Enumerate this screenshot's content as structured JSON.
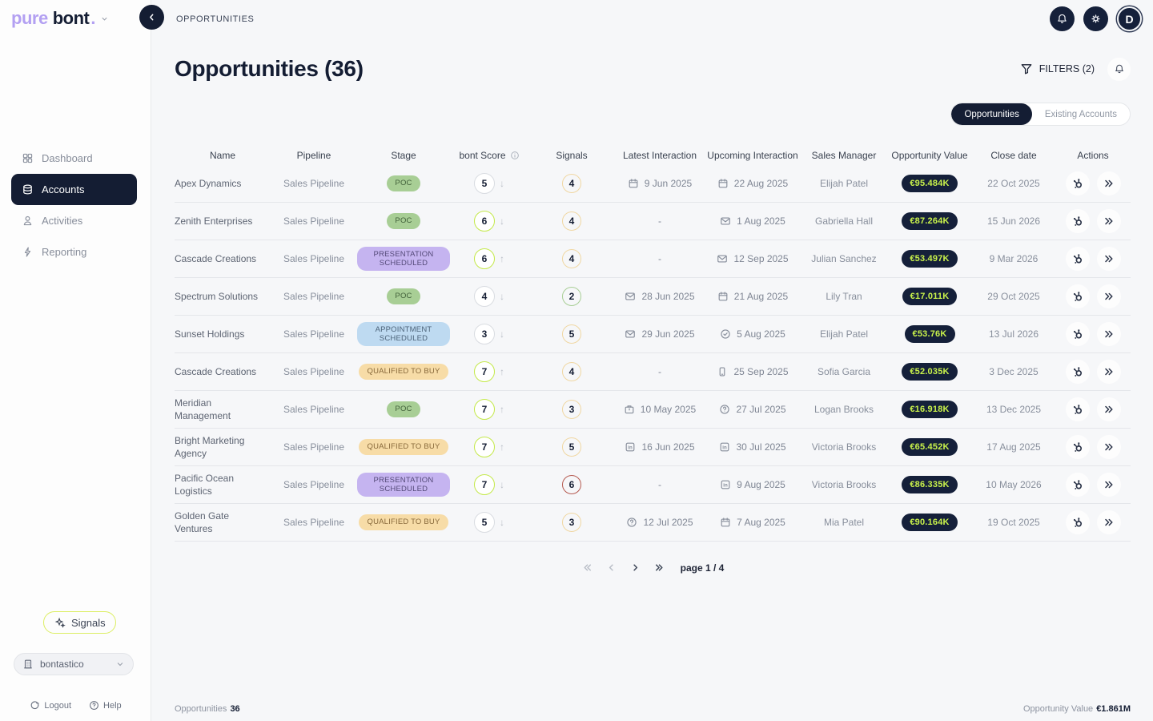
{
  "brand": {
    "logo_part1": "pure",
    "logo_part2": "bont",
    "logo_dot": ".",
    "avatar_initial": "D"
  },
  "topbar": {
    "breadcrumb": "OPPORTUNITIES"
  },
  "sidebar": {
    "items": [
      {
        "label": "Dashboard",
        "icon": "dashboard",
        "active": false
      },
      {
        "label": "Accounts",
        "icon": "database",
        "active": true
      },
      {
        "label": "Activities",
        "icon": "person",
        "active": false
      },
      {
        "label": "Reporting",
        "icon": "lightning",
        "active": false
      }
    ],
    "signals_label": "Signals",
    "workspace": "bontastico",
    "logout_label": "Logout",
    "help_label": "Help"
  },
  "header": {
    "title": "Opportunities (36)",
    "filters_label": "FILTERS (2)"
  },
  "tabs": [
    {
      "label": "Opportunities",
      "active": true
    },
    {
      "label": "Existing Accounts",
      "active": false
    }
  ],
  "table": {
    "columns": [
      {
        "label": "Name"
      },
      {
        "label": "Pipeline"
      },
      {
        "label": "Stage"
      },
      {
        "label": "bont Score",
        "info": true
      },
      {
        "label": "Signals"
      },
      {
        "label": "Latest Interaction"
      },
      {
        "label": "Upcoming Interaction"
      },
      {
        "label": "Sales Manager"
      },
      {
        "label": "Opportunity Value"
      },
      {
        "label": "Close date"
      },
      {
        "label": "Actions"
      }
    ],
    "rows": [
      {
        "name": "Apex Dynamics",
        "pipeline": "Sales Pipeline",
        "stage": "POC",
        "stage_color": "green",
        "score": "5",
        "score_trend": "down",
        "score_level": "gray",
        "signals": "4",
        "signals_color": "yellow",
        "latest": {
          "icon": "calendar",
          "date": "9 Jun 2025"
        },
        "upcoming": {
          "icon": "calendar",
          "date": "22 Aug 2025"
        },
        "manager": "Elijah Patel",
        "value": "€95.484K",
        "close_date": "22 Oct 2025"
      },
      {
        "name": "Zenith Enterprises",
        "pipeline": "Sales Pipeline",
        "stage": "POC",
        "stage_color": "green",
        "score": "6",
        "score_trend": "down",
        "score_level": "lime",
        "signals": "4",
        "signals_color": "yellow",
        "latest": {
          "icon": "",
          "date": "-"
        },
        "upcoming": {
          "icon": "mail",
          "date": "1 Aug 2025"
        },
        "manager": "Gabriella Hall",
        "value": "€87.264K",
        "close_date": "15 Jun 2026"
      },
      {
        "name": "Cascade Creations",
        "pipeline": "Sales Pipeline",
        "stage": "PRESENTATION SCHEDULED",
        "stage_color": "purple",
        "score": "6",
        "score_trend": "up",
        "score_level": "lime",
        "signals": "4",
        "signals_color": "yellow",
        "latest": {
          "icon": "",
          "date": "-"
        },
        "upcoming": {
          "icon": "mail",
          "date": "12 Sep 2025"
        },
        "manager": "Julian Sanchez",
        "value": "€53.497K",
        "close_date": "9 Mar 2026"
      },
      {
        "name": "Spectrum Solutions",
        "pipeline": "Sales Pipeline",
        "stage": "POC",
        "stage_color": "green",
        "score": "4",
        "score_trend": "down",
        "score_level": "gray",
        "signals": "2",
        "signals_color": "green",
        "latest": {
          "icon": "mail",
          "date": "28 Jun 2025"
        },
        "upcoming": {
          "icon": "calendar",
          "date": "21 Aug 2025"
        },
        "manager": "Lily Tran",
        "value": "€17.011K",
        "close_date": "29 Oct 2025"
      },
      {
        "name": "Sunset Holdings",
        "pipeline": "Sales Pipeline",
        "stage": "APPOINTMENT SCHEDULED",
        "stage_color": "blue",
        "score": "3",
        "score_trend": "down",
        "score_level": "gray",
        "signals": "5",
        "signals_color": "yellow",
        "latest": {
          "icon": "mail",
          "date": "29 Jun 2025"
        },
        "upcoming": {
          "icon": "check-circle",
          "date": "5 Aug 2025"
        },
        "manager": "Elijah Patel",
        "value": "€53.76K",
        "close_date": "13 Jul 2026"
      },
      {
        "name": "Cascade Creations",
        "pipeline": "Sales Pipeline",
        "stage": "QUALIFIED TO BUY",
        "stage_color": "orange",
        "score": "7",
        "score_trend": "up",
        "score_level": "lime",
        "signals": "4",
        "signals_color": "yellow",
        "latest": {
          "icon": "",
          "date": "-"
        },
        "upcoming": {
          "icon": "phone",
          "date": "25 Sep 2025"
        },
        "manager": "Sofia Garcia",
        "value": "€52.035K",
        "close_date": "3 Dec 2025"
      },
      {
        "name": "Meridian Management",
        "pipeline": "Sales Pipeline",
        "stage": "POC",
        "stage_color": "green",
        "score": "7",
        "score_trend": "up",
        "score_level": "lime",
        "signals": "3",
        "signals_color": "yellow",
        "latest": {
          "icon": "meeting",
          "date": "10 May 2025"
        },
        "upcoming": {
          "icon": "question-circle",
          "date": "27 Jul 2025"
        },
        "manager": "Logan Brooks",
        "value": "€16.918K",
        "close_date": "13 Dec 2025"
      },
      {
        "name": "Bright Marketing Agency",
        "pipeline": "Sales Pipeline",
        "stage": "QUALIFIED TO BUY",
        "stage_color": "orange",
        "score": "7",
        "score_trend": "up",
        "score_level": "lime",
        "signals": "5",
        "signals_color": "yellow",
        "latest": {
          "icon": "linkedin",
          "date": "16 Jun 2025"
        },
        "upcoming": {
          "icon": "linkedin",
          "date": "30 Jul 2025"
        },
        "manager": "Victoria Brooks",
        "value": "€65.452K",
        "close_date": "17 Aug 2025"
      },
      {
        "name": "Pacific Ocean Logistics",
        "pipeline": "Sales Pipeline",
        "stage": "PRESENTATION SCHEDULED",
        "stage_color": "purple",
        "score": "7",
        "score_trend": "down",
        "score_level": "lime",
        "signals": "6",
        "signals_color": "red",
        "latest": {
          "icon": "",
          "date": "-"
        },
        "upcoming": {
          "icon": "linkedin",
          "date": "9 Aug 2025"
        },
        "manager": "Victoria Brooks",
        "value": "€86.335K",
        "close_date": "10 May 2026"
      },
      {
        "name": "Golden Gate Ventures",
        "pipeline": "Sales Pipeline",
        "stage": "QUALIFIED TO BUY",
        "stage_color": "orange",
        "score": "5",
        "score_trend": "down",
        "score_level": "gray",
        "signals": "3",
        "signals_color": "yellow",
        "latest": {
          "icon": "question-circle",
          "date": "12 Jul 2025"
        },
        "upcoming": {
          "icon": "calendar",
          "date": "7 Aug 2025"
        },
        "manager": "Mia Patel",
        "value": "€90.164K",
        "close_date": "19 Oct 2025"
      }
    ]
  },
  "pagination": {
    "label": "page 1 / 4"
  },
  "footer": {
    "opportunities_label": "Opportunities",
    "opportunities_count": "36",
    "value_label": "Opportunity Value",
    "value_total": "€1.861M"
  },
  "colors": {
    "accent_lime": "#c9f24b",
    "navy": "#141d33"
  }
}
